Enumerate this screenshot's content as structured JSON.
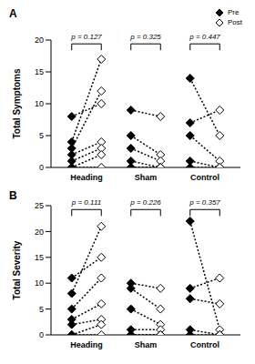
{
  "chart_data": [
    {
      "type": "scatter",
      "title": "A",
      "y_label": "Total Symptoms",
      "categories": [
        "Heading",
        "Sham",
        "Control"
      ],
      "ylim": [
        0,
        20
      ],
      "yticks": [
        0,
        5,
        10,
        15,
        20
      ],
      "line_style": "dotted",
      "legend": "top right",
      "series": [
        {
          "name": "Pre",
          "color": "#000000",
          "marker": "diamond",
          "values": [
            [
              8,
              4,
              3,
              2,
              1,
              0,
              0
            ],
            [
              9,
              5,
              3,
              1,
              0,
              0
            ],
            [
              14,
              7,
              5,
              1,
              0
            ]
          ]
        },
        {
          "name": "Post",
          "color": "#000000",
          "marker": "open diamond",
          "values": [
            [
              10,
              17,
              12,
              4,
              3,
              2,
              0
            ],
            [
              8,
              2,
              1,
              0,
              0,
              0
            ],
            [
              5,
              9,
              1,
              0,
              0
            ]
          ]
        }
      ],
      "annotations": [
        "p = 0.127",
        "p = 0.325",
        "p = 0.447"
      ]
    },
    {
      "type": "scatter",
      "title": "B",
      "y_label": "Total Severity",
      "categories": [
        "Heading",
        "Sham",
        "Control"
      ],
      "ylim": [
        0,
        25
      ],
      "yticks": [
        0,
        5,
        10,
        15,
        20,
        25
      ],
      "line_style": "dotted",
      "series": [
        {
          "name": "Pre",
          "color": "#000000",
          "marker": "diamond",
          "values": [
            [
              11,
              8,
              5,
              3,
              2,
              0,
              0
            ],
            [
              10,
              9,
              5,
              1,
              0,
              0
            ],
            [
              22,
              9,
              7,
              1,
              0
            ]
          ]
        },
        {
          "name": "Post",
          "color": "#000000",
          "marker": "open diamond",
          "values": [
            [
              15,
              21,
              11,
              6,
              3,
              2,
              0
            ],
            [
              9,
              5,
              2,
              1,
              0,
              0
            ],
            [
              1,
              11,
              6,
              0,
              0
            ]
          ]
        }
      ],
      "annotations": [
        "p = 0.111",
        "p = 0.226",
        "p = 0.357"
      ]
    }
  ]
}
